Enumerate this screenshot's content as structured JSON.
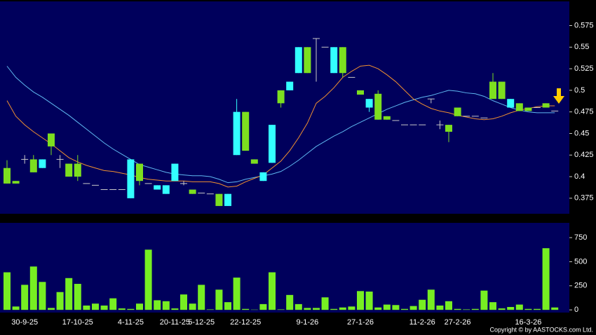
{
  "chart_data": [
    {
      "type": "candlestick",
      "categories": [
        null,
        null,
        "30-9-25",
        null,
        null,
        null,
        null,
        null,
        "17-10-25",
        null,
        null,
        null,
        null,
        null,
        "4-11-25",
        null,
        null,
        null,
        null,
        "20-11-25",
        null,
        null,
        "5-12-25",
        null,
        null,
        null,
        null,
        "22-12-25",
        null,
        null,
        null,
        null,
        null,
        null,
        "9-1-26",
        null,
        null,
        null,
        null,
        null,
        "27-1-26",
        null,
        null,
        null,
        null,
        null,
        null,
        "11-2-26",
        null,
        null,
        null,
        "27-2-26",
        null,
        null,
        null,
        null,
        null,
        null,
        null,
        "16-3-26",
        null,
        null,
        null
      ],
      "open": [
        0.392,
        0.392,
        0.42,
        0.405,
        0.42,
        0.435,
        0.42,
        0.4,
        0.4,
        0.392,
        0.39,
        0.385,
        0.385,
        0.385,
        0.42,
        0.395,
        0.392,
        0.39,
        0.39,
        0.415,
        0.392,
        0.38,
        0.381,
        0.38,
        0.366,
        0.38,
        0.475,
        0.43,
        0.415,
        0.405,
        0.46,
        0.485,
        0.51,
        0.55,
        0.52,
        0.56,
        0.55,
        0.55,
        0.52,
        0.515,
        0.495,
        0.49,
        0.466,
        0.466,
        0.465,
        0.46,
        0.46,
        0.46,
        0.49,
        0.46,
        0.452,
        0.47,
        0.47,
        0.47,
        0.468,
        0.49,
        0.49,
        0.49,
        0.476,
        0.476,
        0.48,
        0.48,
        0.476
      ],
      "high": [
        0.419,
        0.395,
        0.425,
        0.425,
        0.42,
        0.45,
        0.425,
        0.415,
        0.425,
        0.392,
        0.39,
        0.385,
        0.385,
        0.385,
        0.42,
        0.415,
        0.392,
        0.39,
        0.39,
        0.415,
        0.395,
        0.385,
        0.381,
        0.38,
        0.38,
        0.38,
        0.49,
        0.475,
        0.42,
        0.405,
        0.46,
        0.5,
        0.51,
        0.55,
        0.55,
        0.56,
        0.55,
        0.55,
        0.55,
        0.515,
        0.5,
        0.49,
        0.5,
        0.47,
        0.465,
        0.46,
        0.46,
        0.46,
        0.49,
        0.465,
        0.46,
        0.48,
        0.47,
        0.47,
        0.468,
        0.52,
        0.51,
        0.49,
        0.485,
        0.48,
        0.48,
        0.485,
        0.476
      ],
      "low": [
        0.392,
        0.392,
        0.415,
        0.405,
        0.41,
        0.425,
        0.41,
        0.4,
        0.395,
        0.392,
        0.39,
        0.385,
        0.385,
        0.385,
        0.375,
        0.39,
        0.392,
        0.385,
        0.38,
        0.395,
        0.39,
        0.38,
        0.381,
        0.38,
        0.366,
        0.366,
        0.425,
        0.43,
        0.415,
        0.395,
        0.416,
        0.48,
        0.5,
        0.52,
        0.52,
        0.51,
        0.55,
        0.52,
        0.515,
        0.515,
        0.495,
        0.475,
        0.466,
        0.466,
        0.465,
        0.46,
        0.46,
        0.46,
        0.485,
        0.455,
        0.44,
        0.47,
        0.47,
        0.47,
        0.468,
        0.49,
        0.49,
        0.48,
        0.476,
        0.476,
        0.48,
        0.48,
        0.476
      ],
      "close": [
        0.41,
        0.395,
        0.42,
        0.42,
        0.41,
        0.45,
        0.42,
        0.415,
        0.415,
        0.392,
        0.39,
        0.385,
        0.385,
        0.385,
        0.375,
        0.415,
        0.392,
        0.385,
        0.38,
        0.395,
        0.392,
        0.385,
        0.381,
        0.38,
        0.38,
        0.366,
        0.425,
        0.475,
        0.42,
        0.395,
        0.416,
        0.5,
        0.5,
        0.52,
        0.55,
        0.56,
        0.55,
        0.52,
        0.55,
        0.515,
        0.5,
        0.48,
        0.496,
        0.47,
        0.465,
        0.46,
        0.46,
        0.46,
        0.49,
        0.46,
        0.46,
        0.48,
        0.47,
        0.47,
        0.468,
        0.51,
        0.51,
        0.48,
        0.485,
        0.48,
        0.48,
        0.485,
        0.476
      ],
      "up_color": "#7ddf1f",
      "down_color": "#33ffff",
      "flat_color": "#c8c8c8",
      "series": [
        {
          "color": "#5fb8f0",
          "values": [
            0.528,
            0.515,
            0.506,
            0.498,
            0.492,
            0.485,
            0.478,
            0.471,
            0.463,
            0.455,
            0.447,
            0.439,
            0.432,
            0.426,
            0.42,
            0.414,
            0.411,
            0.408,
            0.405,
            0.403,
            0.402,
            0.401,
            0.401,
            0.4,
            0.397,
            0.393,
            0.394,
            0.397,
            0.399,
            0.401,
            0.403,
            0.406,
            0.412,
            0.419,
            0.427,
            0.435,
            0.441,
            0.447,
            0.452,
            0.458,
            0.463,
            0.468,
            0.473,
            0.478,
            0.482,
            0.486,
            0.489,
            0.492,
            0.494,
            0.497,
            0.5,
            0.499,
            0.497,
            0.496,
            0.493,
            0.488,
            0.484,
            0.48,
            0.477,
            0.475,
            0.474,
            0.474,
            0.474
          ]
        },
        {
          "color": "#f09030",
          "values": [
            0.488,
            0.47,
            0.46,
            0.452,
            0.445,
            0.438,
            0.43,
            0.422,
            0.417,
            0.413,
            0.41,
            0.407,
            0.406,
            0.404,
            0.402,
            0.399,
            0.397,
            0.396,
            0.395,
            0.395,
            0.395,
            0.394,
            0.394,
            0.394,
            0.392,
            0.388,
            0.389,
            0.394,
            0.398,
            0.402,
            0.41,
            0.418,
            0.43,
            0.445,
            0.462,
            0.485,
            0.493,
            0.503,
            0.515,
            0.522,
            0.528,
            0.529,
            0.525,
            0.518,
            0.51,
            0.5,
            0.49,
            0.484,
            0.479,
            0.476,
            0.474,
            0.471,
            0.469,
            0.467,
            0.466,
            0.467,
            0.47,
            0.474,
            0.477,
            0.479,
            0.481,
            0.482,
            0.482
          ]
        }
      ],
      "ylim": [
        0.357,
        0.603
      ],
      "yticks": [
        0.375,
        0.4,
        0.425,
        0.45,
        0.475,
        0.5,
        0.525,
        0.55,
        0.575
      ]
    },
    {
      "type": "bar",
      "values": [
        390,
        35,
        260,
        450,
        290,
        20,
        185,
        330,
        270,
        45,
        65,
        45,
        120,
        15,
        10,
        65,
        625,
        100,
        90,
        15,
        160,
        65,
        260,
        5,
        210,
        80,
        335,
        10,
        3,
        60,
        390,
        5,
        155,
        60,
        20,
        20,
        130,
        10,
        25,
        35,
        195,
        190,
        25,
        55,
        50,
        10,
        40,
        105,
        210,
        45,
        90,
        10,
        5,
        10,
        200,
        80,
        15,
        30,
        55,
        10,
        10,
        640,
        25
      ],
      "color": "#77ee22",
      "ylim": [
        -28,
        903
      ],
      "yticks": [
        0,
        250,
        500,
        750
      ]
    },
    {
      "type": "text",
      "copyright": "Copyright © by AASTOCKS.com Ltd."
    }
  ]
}
